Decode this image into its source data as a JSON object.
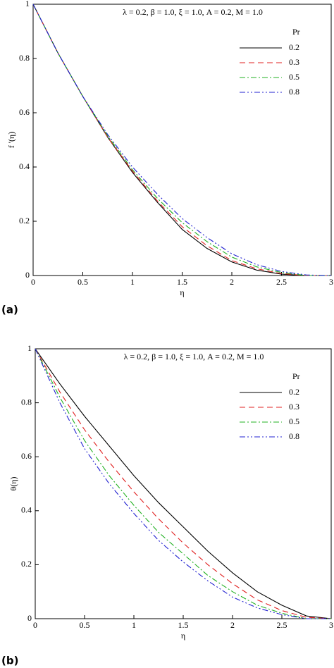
{
  "chart_data": [
    {
      "type": "line",
      "panel_label": "(a)",
      "annotation": "λ = 0.2, β = 1.0, ξ = 1.0, A = 0.2, M = 1.0",
      "x_label": "η",
      "y_label": "f '(η)",
      "legend_title": "Pr",
      "x": [
        0,
        0.25,
        0.5,
        0.75,
        1,
        1.25,
        1.5,
        1.75,
        2,
        2.25,
        2.5,
        2.75,
        3
      ],
      "series": [
        {
          "name": "0.2",
          "color": "#000000",
          "dash": "solid",
          "values": [
            1,
            0.82,
            0.66,
            0.51,
            0.38,
            0.27,
            0.17,
            0.1,
            0.05,
            0.02,
            0.005,
            0,
            0
          ]
        },
        {
          "name": "0.3",
          "color": "#e02020",
          "dash": "dashed",
          "values": [
            1,
            0.82,
            0.66,
            0.51,
            0.385,
            0.275,
            0.18,
            0.11,
            0.055,
            0.025,
            0.007,
            0,
            0
          ]
        },
        {
          "name": "0.5",
          "color": "#20b020",
          "dash": "dashdot",
          "values": [
            1,
            0.82,
            0.66,
            0.515,
            0.39,
            0.285,
            0.195,
            0.125,
            0.068,
            0.032,
            0.011,
            0,
            0
          ]
        },
        {
          "name": "0.8",
          "color": "#2020d0",
          "dash": "dashdotdot",
          "values": [
            1,
            0.82,
            0.66,
            0.52,
            0.4,
            0.3,
            0.21,
            0.14,
            0.08,
            0.04,
            0.015,
            0.002,
            0
          ]
        }
      ],
      "xlim": [
        0,
        3
      ],
      "ylim": [
        0,
        1
      ],
      "xticks": [
        0,
        0.5,
        1,
        1.5,
        2,
        2.5,
        3
      ],
      "yticks": [
        0,
        0.2,
        0.4,
        0.6,
        0.8,
        1
      ]
    },
    {
      "type": "line",
      "panel_label": "(b)",
      "annotation": "λ = 0.2, β = 1.0, ξ = 1.0, A = 0.2, M = 1.0",
      "x_label": "η",
      "y_label": "θ(η)",
      "legend_title": "Pr",
      "x": [
        0,
        0.25,
        0.5,
        0.75,
        1,
        1.25,
        1.5,
        1.75,
        2,
        2.25,
        2.5,
        2.75,
        3
      ],
      "series": [
        {
          "name": "0.2",
          "color": "#000000",
          "dash": "solid",
          "values": [
            1,
            0.87,
            0.75,
            0.64,
            0.53,
            0.43,
            0.34,
            0.25,
            0.17,
            0.1,
            0.05,
            0.01,
            0
          ]
        },
        {
          "name": "0.3",
          "color": "#e02020",
          "dash": "dashed",
          "values": [
            1,
            0.84,
            0.7,
            0.58,
            0.47,
            0.37,
            0.28,
            0.2,
            0.13,
            0.07,
            0.03,
            0.005,
            0
          ]
        },
        {
          "name": "0.5",
          "color": "#20b020",
          "dash": "dashdot",
          "values": [
            1,
            0.82,
            0.66,
            0.53,
            0.42,
            0.32,
            0.24,
            0.16,
            0.1,
            0.05,
            0.02,
            0,
            0
          ]
        },
        {
          "name": "0.8",
          "color": "#2020d0",
          "dash": "dashdotdot",
          "values": [
            1,
            0.8,
            0.63,
            0.5,
            0.39,
            0.29,
            0.21,
            0.14,
            0.08,
            0.04,
            0.015,
            0,
            0
          ]
        }
      ],
      "xlim": [
        0,
        3
      ],
      "ylim": [
        0,
        1
      ],
      "xticks": [
        0,
        0.5,
        1,
        1.5,
        2,
        2.5,
        3
      ],
      "yticks": [
        0,
        0.2,
        0.4,
        0.6,
        0.8,
        1
      ]
    }
  ]
}
